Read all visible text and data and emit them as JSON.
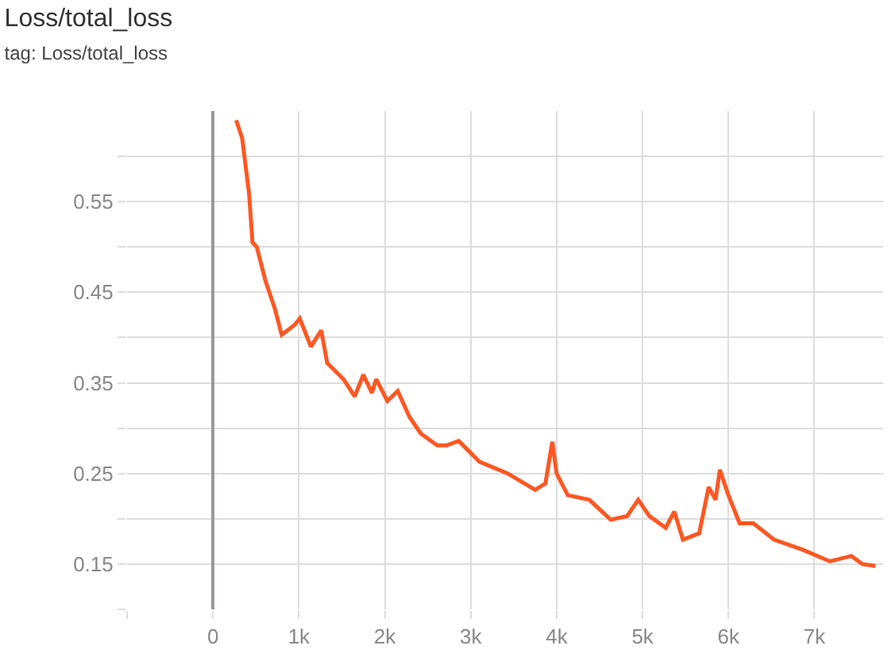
{
  "chart_data": {
    "type": "line",
    "title": "Loss/total_loss",
    "subtitle": "tag: Loss/total_loss",
    "xlim": [
      -1000,
      7800
    ],
    "xticks": [
      {
        "value": -1000,
        "label": null
      },
      0,
      {
        "value": 1000,
        "label": "1k"
      },
      {
        "value": 2000,
        "label": "2k"
      },
      {
        "value": 3000,
        "label": "3k"
      },
      {
        "value": 4000,
        "label": "4k"
      },
      {
        "value": 5000,
        "label": "5k"
      },
      {
        "value": 6000,
        "label": "6k"
      },
      {
        "value": 7000,
        "label": "7k"
      }
    ],
    "ylim": [
      0.1,
      0.65
    ],
    "yticks": [
      {
        "value": 0.1,
        "label": null
      },
      0.15,
      {
        "value": 0.2,
        "label": null
      },
      0.25,
      {
        "value": 0.3,
        "label": null
      },
      0.35,
      {
        "value": 0.4,
        "label": null
      },
      0.45,
      {
        "value": 0.5,
        "label": null
      },
      0.55,
      {
        "value": 0.6,
        "label": null
      }
    ],
    "grid": true,
    "marker": "none",
    "line_style": "solid",
    "x": [
      270,
      340,
      420,
      460,
      510,
      610,
      720,
      800,
      950,
      1010,
      1140,
      1260,
      1330,
      1520,
      1650,
      1750,
      1850,
      1900,
      2030,
      2150,
      2290,
      2420,
      2610,
      2720,
      2860,
      3100,
      3430,
      3750,
      3870,
      3950,
      4000,
      4130,
      4380,
      4630,
      4820,
      4950,
      5080,
      5270,
      5370,
      5470,
      5660,
      5770,
      5850,
      5900,
      6000,
      6130,
      6290,
      6530,
      6860,
      7180,
      7430,
      7560,
      7710
    ],
    "series": [
      {
        "color": "#ff5722",
        "values": [
          0.64,
          0.62,
          0.559,
          0.505,
          0.5,
          0.463,
          0.432,
          0.403,
          0.414,
          0.421,
          0.39,
          0.408,
          0.372,
          0.354,
          0.335,
          0.359,
          0.339,
          0.354,
          0.33,
          0.341,
          0.312,
          0.294,
          0.281,
          0.281,
          0.286,
          0.263,
          0.25,
          0.232,
          0.239,
          0.285,
          0.25,
          0.226,
          0.221,
          0.199,
          0.203,
          0.221,
          0.203,
          0.19,
          0.208,
          0.177,
          0.184,
          0.235,
          0.221,
          0.254,
          0.226,
          0.195,
          0.195,
          0.177,
          0.166,
          0.153,
          0.159,
          0.15,
          0.148
        ]
      }
    ]
  }
}
